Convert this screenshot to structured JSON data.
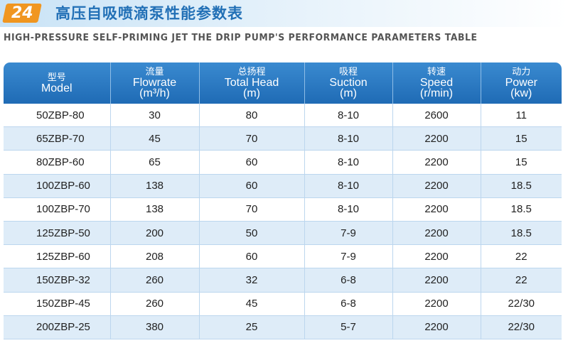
{
  "header": {
    "badge_number": "24",
    "title_cn": "高压自吸喷滴泵性能参数表",
    "title_en": "HIGH-PRESSURE SELF-PRIMING JET THE DRIP PUMP'S PERFORMANCE PARAMETERS TABLE"
  },
  "colors": {
    "badge": "#f09620",
    "title_cn": "#2270b6",
    "header_bg": "#2a77c0",
    "stripe_row": "#deecf8"
  },
  "table": {
    "columns": [
      {
        "cn": "型号",
        "en": "Model",
        "unit": ""
      },
      {
        "cn": "流量",
        "en": "Flowrate",
        "unit": "(m³/h)"
      },
      {
        "cn": "总扬程",
        "en": "Total Head",
        "unit": "(m)"
      },
      {
        "cn": "吸程",
        "en": "Suction",
        "unit": "(m)"
      },
      {
        "cn": "转速",
        "en": "Speed",
        "unit": "(r/min)"
      },
      {
        "cn": "动力",
        "en": "Power",
        "unit": "(kw)"
      }
    ],
    "rows": [
      [
        "50ZBP-80",
        "30",
        "80",
        "8-10",
        "2600",
        "11"
      ],
      [
        "65ZBP-70",
        "45",
        "70",
        "8-10",
        "2200",
        "15"
      ],
      [
        "80ZBP-60",
        "65",
        "60",
        "8-10",
        "2200",
        "15"
      ],
      [
        "100ZBP-60",
        "138",
        "60",
        "8-10",
        "2200",
        "18.5"
      ],
      [
        "100ZBP-70",
        "138",
        "70",
        "8-10",
        "2200",
        "18.5"
      ],
      [
        "125ZBP-50",
        "200",
        "50",
        "7-9",
        "2200",
        "18.5"
      ],
      [
        "125ZBP-60",
        "208",
        "60",
        "7-9",
        "2200",
        "22"
      ],
      [
        "150ZBP-32",
        "260",
        "32",
        "6-8",
        "2200",
        "22"
      ],
      [
        "150ZBP-45",
        "260",
        "45",
        "6-8",
        "2200",
        "22/30"
      ],
      [
        "200ZBP-25",
        "380",
        "25",
        "5-7",
        "2200",
        "22/30"
      ]
    ]
  }
}
